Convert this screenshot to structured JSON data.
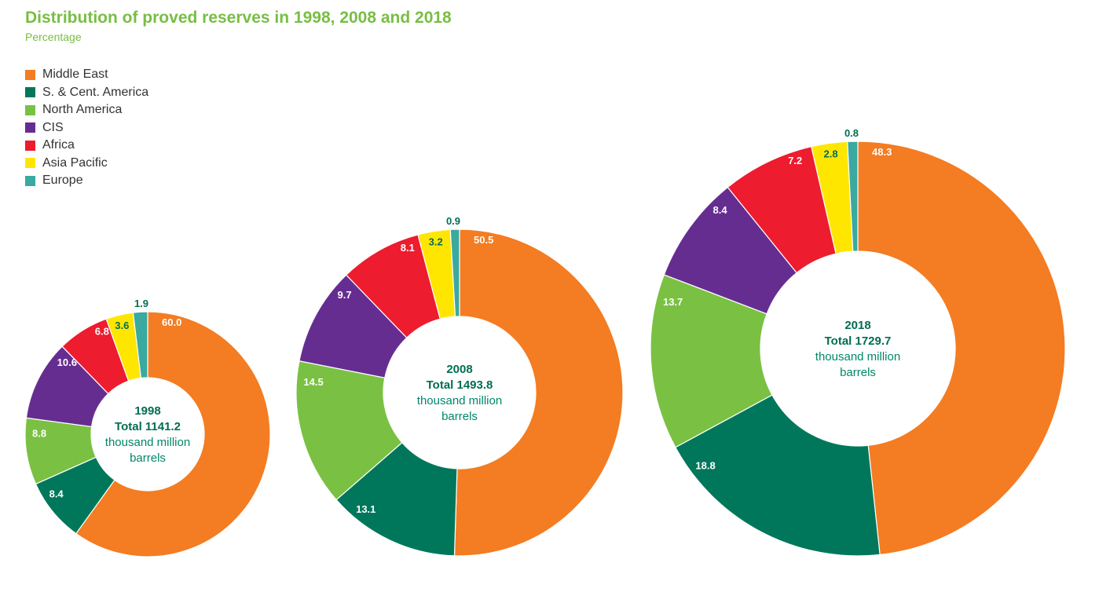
{
  "header": {
    "title": "Distribution of proved reserves in 1998, 2008 and 2018",
    "subtitle": "Percentage"
  },
  "colors": {
    "Middle East": "#f47c22",
    "S. & Cent. America": "#00775a",
    "North America": "#7ac143",
    "CIS": "#662d91",
    "Africa": "#ed1c2e",
    "Asia Pacific": "#ffe600",
    "Europe": "#3aa99f"
  },
  "chart_data": {
    "type": "donut",
    "categories": [
      "Middle East",
      "S. & Cent. America",
      "North America",
      "CIS",
      "Africa",
      "Asia Pacific",
      "Europe"
    ],
    "series": [
      {
        "year": "1998",
        "total_label": "Total 1141.2",
        "unit_line1": "thousand million",
        "unit_line2": "barrels",
        "values": [
          60.0,
          8.4,
          8.8,
          10.6,
          6.8,
          3.6,
          1.9
        ]
      },
      {
        "year": "2008",
        "total_label": "Total 1493.8",
        "unit_line1": "thousand million",
        "unit_line2": "barrels",
        "values": [
          50.5,
          13.1,
          14.5,
          9.7,
          8.1,
          3.2,
          0.9
        ]
      },
      {
        "year": "2018",
        "total_label": "Total 1729.7",
        "unit_line1": "thousand million",
        "unit_line2": "barrels",
        "values": [
          48.3,
          18.8,
          13.7,
          8.4,
          7.2,
          2.8,
          0.8
        ]
      }
    ]
  }
}
